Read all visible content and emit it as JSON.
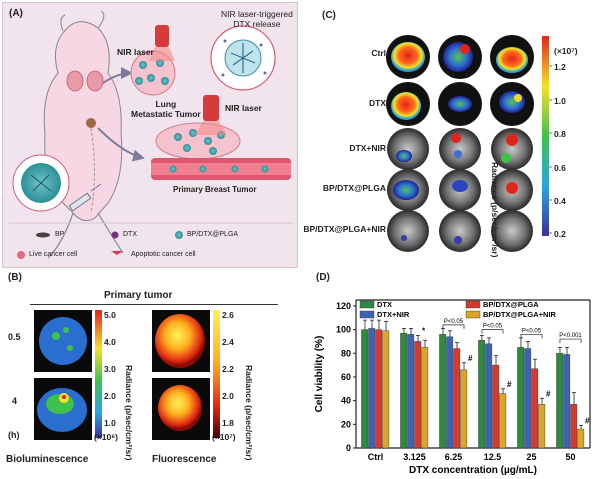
{
  "panel_a": {
    "label": "(A)",
    "nir_laser_top": "NIR laser",
    "nir_laser_bottom": "NIR laser",
    "nir_release": "NIR laser-triggered\nDTX release",
    "lung_tumor": "Lung\nMetastatic Tumor",
    "primary_tumor": "Primary Breast Tumor",
    "legend": {
      "bp": "BP",
      "dtx": "DTX",
      "bp_dtx_plga": "BP/DTX@PLGA",
      "live_cell": "Live cancer cell",
      "apoptotic_cell": "Apoptotic cancer cell"
    }
  },
  "panel_c": {
    "label": "(C)",
    "rows": [
      "Ctrl",
      "DTX",
      "DTX+NIR",
      "BP/DTX@PLGA",
      "BP/DTX@PLGA+NIR"
    ],
    "colorbar": {
      "unit": "(×10⁷)",
      "ticks": [
        "1.2",
        "1.0",
        "0.8",
        "0.6",
        "0.4",
        "0.2"
      ],
      "label": "Radiance (p/sec/cm²/sr)"
    }
  },
  "panel_b": {
    "label": "(B)",
    "title": "Primary tumor",
    "row_labels": [
      "0.5",
      "4",
      "(h)"
    ],
    "bio_label": "Bioluminescence",
    "fluo_label": "Fluorescence",
    "bio_bar": {
      "ticks": [
        "5.0",
        "4.0",
        "3.0",
        "2.0",
        "1.0"
      ],
      "unit": "(×10⁶)",
      "label": "Radiance (p/sec/cm²/sr)"
    },
    "fluo_bar": {
      "ticks": [
        "2.6",
        "2.4",
        "2.2",
        "2.0",
        "1.8"
      ],
      "unit": "(×10⁷)",
      "label": "Radiance (p/sec/cm²/sr)"
    }
  },
  "panel_d": {
    "label": "(D)",
    "chart_data": {
      "type": "bar",
      "xlabel": "DTX concentration (µg/mL)",
      "ylabel": "Cell viability (%)",
      "ylim": [
        0,
        125
      ],
      "yticks": [
        0,
        20,
        40,
        60,
        80,
        100,
        120
      ],
      "categories": [
        "Ctrl",
        "3.125",
        "6.25",
        "12.5",
        "25",
        "50"
      ],
      "series": [
        {
          "name": "DTX",
          "color": "#2e8b3e",
          "values": [
            100,
            97,
            96,
            91,
            85,
            80
          ],
          "errors": [
            8,
            4,
            5,
            4,
            8,
            5
          ]
        },
        {
          "name": "DTX+NIR",
          "color": "#3e63b4",
          "values": [
            101,
            96,
            94,
            88,
            84,
            79
          ],
          "errors": [
            7,
            5,
            5,
            5,
            6,
            6
          ]
        },
        {
          "name": "BP/DTX@PLGA",
          "color": "#d63a2f",
          "values": [
            100,
            90,
            84,
            70,
            67,
            37
          ],
          "errors": [
            8,
            5,
            5,
            8,
            8,
            10
          ]
        },
        {
          "name": "BP/DTX@PLGA+NIR",
          "color": "#d9a629",
          "values": [
            99,
            85,
            66,
            46,
            37,
            16
          ],
          "errors": [
            8,
            6,
            6,
            4,
            5,
            3
          ]
        }
      ],
      "legend_position": "top",
      "annotations": [
        "P<0.05",
        "P<0.05",
        "P<0.05",
        "P<0.001",
        "*",
        "#",
        "#",
        "#",
        "#"
      ]
    }
  }
}
